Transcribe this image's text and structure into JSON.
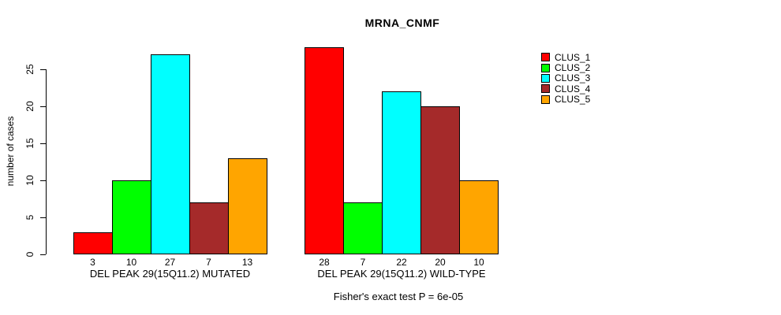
{
  "chart_data": {
    "type": "bar",
    "title": "MRNA_CNMF",
    "ylabel": "number of cases",
    "xlabel": "",
    "yticks": [
      0,
      5,
      10,
      15,
      20,
      25
    ],
    "ylim": [
      0,
      28
    ],
    "grid": false,
    "legend_position": "right",
    "bar_value_labels": true,
    "categories": [
      "DEL PEAK 29(15Q11.2) MUTATED",
      "DEL PEAK 29(15Q11.2) WILD-TYPE"
    ],
    "series": [
      {
        "name": "CLUS_1",
        "color": "#FF0000",
        "values": [
          3,
          28
        ]
      },
      {
        "name": "CLUS_2",
        "color": "#00FF00",
        "values": [
          10,
          7
        ]
      },
      {
        "name": "CLUS_3",
        "color": "#00FFFF",
        "values": [
          27,
          22
        ]
      },
      {
        "name": "CLUS_4",
        "color": "#A52A2A",
        "values": [
          7,
          20
        ]
      },
      {
        "name": "CLUS_5",
        "color": "#FFA500",
        "values": [
          13,
          10
        ]
      }
    ],
    "annotation": "Fisher's exact test P = 6e-05"
  }
}
